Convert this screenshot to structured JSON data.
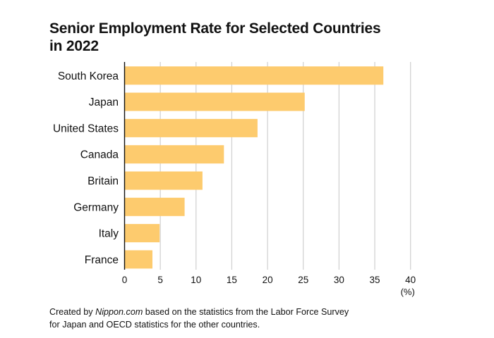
{
  "chart_data": {
    "type": "bar",
    "orientation": "horizontal",
    "title_line1": "Senior Employment Rate for Selected Countries",
    "title_line2": "in 2022",
    "categories": [
      "South Korea",
      "Japan",
      "United States",
      "Canada",
      "Britain",
      "Germany",
      "Italy",
      "France"
    ],
    "values": [
      36.2,
      25.2,
      18.6,
      13.9,
      10.9,
      8.4,
      4.9,
      3.9
    ],
    "xlim": [
      0,
      40
    ],
    "xticks": [
      0,
      5,
      10,
      15,
      20,
      25,
      30,
      35,
      40
    ],
    "xunit": "(%)",
    "grid": true,
    "bar_color": "#fdcb6e"
  },
  "footer": {
    "prefix": "Created by ",
    "source": "Nippon.com",
    "suffix": " based on the statistics from the Labor Force Survey for Japan and OECD statistics for the other countries."
  }
}
